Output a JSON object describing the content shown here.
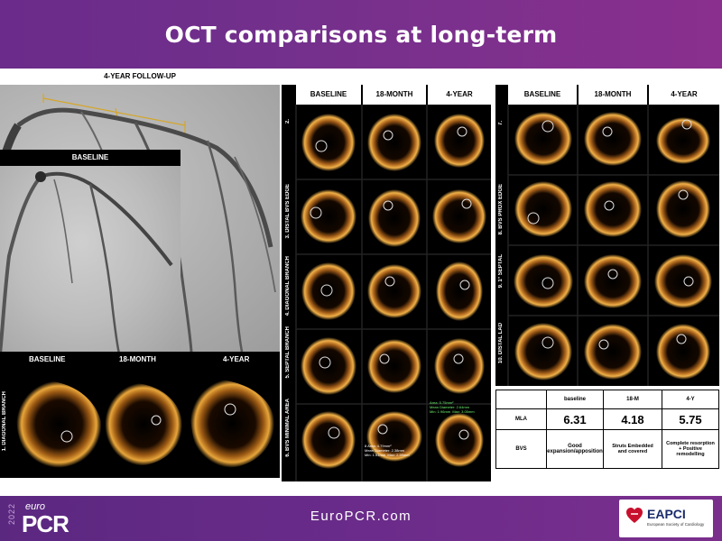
{
  "title": "OCT comparisons at long-term",
  "angio": {
    "followup_label": "4-YEAR FOLLOW-UP",
    "inset_label": "BASELINE"
  },
  "strip": {
    "side_label": "1. DIAGONAL BRANCH",
    "headers": [
      "BASELINE",
      "18-MONTH",
      "4-YEAR"
    ]
  },
  "grid_mid": {
    "headers": [
      "BASELINE",
      "18-MONTH",
      "4-YEAR"
    ],
    "rows": [
      "2.",
      "3. DISTAL BVS EDGE",
      "4. DIAGONAL BRANCH",
      "5. SEPTAL BRANCH",
      "6. BVS MINIMAL AREA"
    ],
    "notes": {
      "n18": "8 Area: 4.79mm²\nMean Diameter: 2.38mm\nMin: 1.51mm  Max: 2.59mm",
      "n4y": "Area: 5.75mm²\nMean Diameter: 2.64mm\nMin: 1.96mm  Max: 3.05mm"
    }
  },
  "grid_right": {
    "headers": [
      "BASELINE",
      "18-MONTH",
      "4-YEAR"
    ],
    "rows": [
      "7.",
      "8. BVS PROX EDGE",
      "9. 1° SEPTAL",
      "10. DISTAL LAD"
    ]
  },
  "table": {
    "columns": [
      "",
      "baseline",
      "18-M",
      "4-Y"
    ],
    "rows": [
      {
        "label": "MLA",
        "values": [
          "6.31",
          "4.18",
          "5.75"
        ]
      },
      {
        "label": "BVS",
        "values": [
          "Good expansion/apposition",
          "Struts Embedded and covered",
          "Complete resorption + Positive remodelling"
        ]
      }
    ]
  },
  "footer": {
    "url": "EuroPCR.com",
    "logo_year": "2022",
    "logo_euro": "euro",
    "logo_word": "PCR",
    "eapci_name": "EAPCI",
    "eapci_sub": "European Society of Cardiology"
  },
  "colors": {
    "brand_purple": "#6a2b8a",
    "oct_ring": "#e8a53a",
    "oct_glow": "#7a3c0a"
  }
}
